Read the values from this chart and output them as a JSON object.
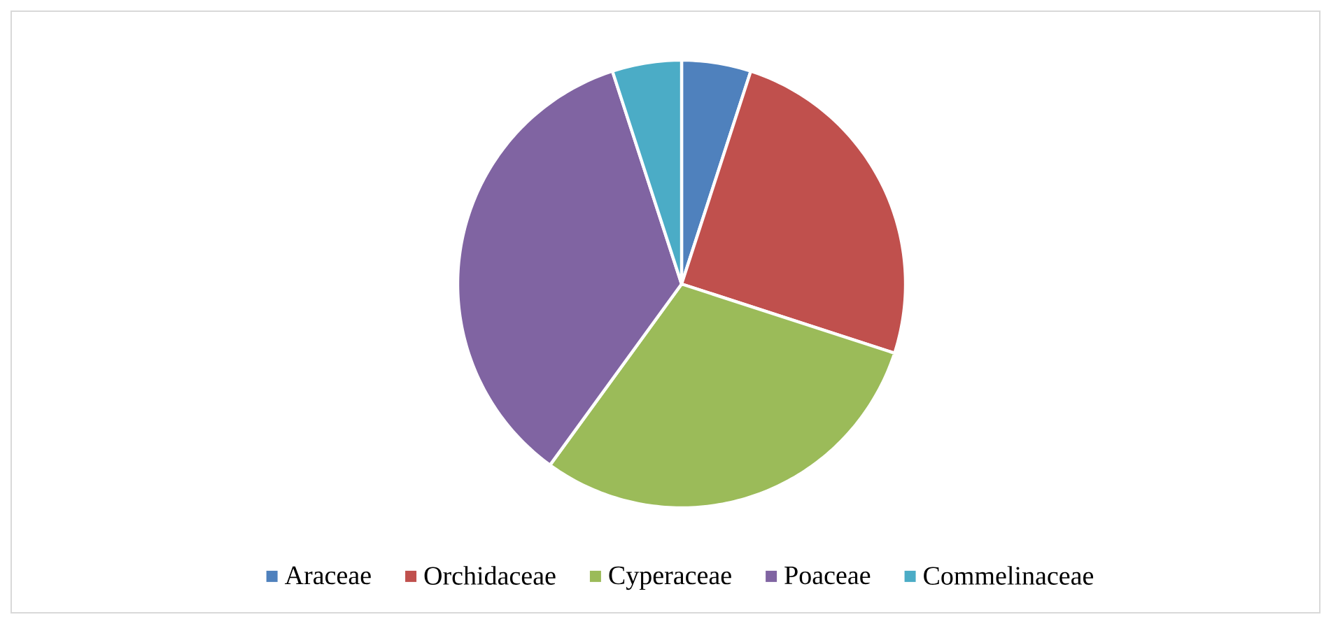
{
  "chart_data": {
    "type": "pie",
    "categories": [
      "Araceae",
      "Orchidaceae",
      "Cyperaceae",
      "Poaceae",
      "Commelinaceae"
    ],
    "values": [
      5,
      25,
      30,
      35,
      5
    ],
    "colors": [
      "#4f81bd",
      "#c0504d",
      "#9bbb59",
      "#8064a2",
      "#4bacc6"
    ],
    "legend": "bottom"
  }
}
